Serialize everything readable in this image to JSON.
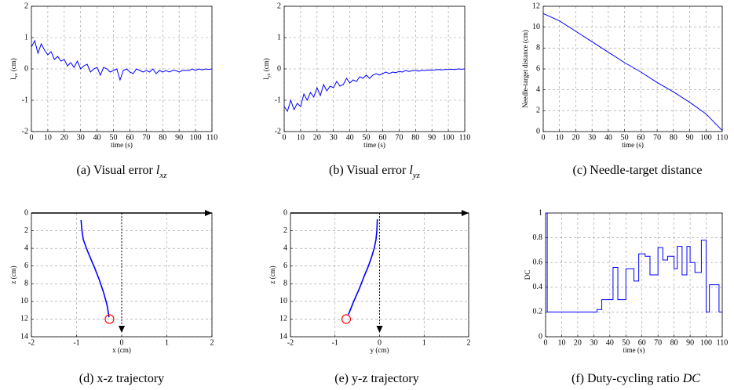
{
  "chart_data": [
    {
      "type": "line",
      "xlabel": "time (s)",
      "ylabel": {
        "base": "l",
        "sub": "xz",
        "unit": " (cm)"
      },
      "caption": "(a) Visual error ",
      "caption_math": "l",
      "caption_sub": "xz",
      "xlim": [
        0,
        110
      ],
      "ylim": [
        -2,
        2
      ],
      "xticks": [
        0,
        10,
        20,
        30,
        40,
        50,
        60,
        70,
        80,
        90,
        100,
        110
      ],
      "yticks": [
        -2,
        -1,
        0,
        1,
        2
      ],
      "grid": true,
      "color": "#0000ff",
      "x": [
        0,
        2,
        4,
        6,
        8,
        10,
        12,
        14,
        16,
        18,
        20,
        22,
        24,
        26,
        28,
        30,
        32,
        34,
        36,
        38,
        40,
        42,
        44,
        46,
        48,
        50,
        52,
        54,
        56,
        58,
        60,
        62,
        64,
        66,
        68,
        70,
        72,
        74,
        76,
        78,
        80,
        82,
        84,
        86,
        88,
        90,
        92,
        94,
        96,
        98,
        100,
        102,
        104,
        106,
        108,
        110
      ],
      "values": [
        0.7,
        0.9,
        0.5,
        0.8,
        0.6,
        0.45,
        0.55,
        0.3,
        0.4,
        0.25,
        0.3,
        0.1,
        0.2,
        0.05,
        0.25,
        0.0,
        0.1,
        0.15,
        -0.1,
        0.0,
        0.05,
        -0.2,
        0.05,
        0.0,
        -0.1,
        -0.05,
        0.0,
        -0.35,
        -0.05,
        0.0,
        -0.1,
        -0.15,
        0.0,
        -0.05,
        -0.1,
        -0.05,
        -0.1,
        0.0,
        -0.15,
        -0.05,
        -0.1,
        -0.05,
        -0.1,
        -0.05,
        -0.05,
        -0.1,
        -0.05,
        -0.05,
        -0.05,
        0.0,
        -0.05,
        0.0,
        -0.03,
        0.0,
        -0.02,
        0.0
      ]
    },
    {
      "type": "line",
      "xlabel": "time (s)",
      "ylabel": {
        "base": "l",
        "sub": "yz",
        "unit": " (cm)"
      },
      "caption": "(b) Visual error ",
      "caption_math": "l",
      "caption_sub": "yz",
      "xlim": [
        0,
        110
      ],
      "ylim": [
        -2,
        2
      ],
      "xticks": [
        0,
        10,
        20,
        30,
        40,
        50,
        60,
        70,
        80,
        90,
        100,
        110
      ],
      "yticks": [
        -2,
        -1,
        0,
        1,
        2
      ],
      "grid": true,
      "color": "#0000ff",
      "x": [
        0,
        2,
        4,
        6,
        8,
        10,
        12,
        14,
        16,
        18,
        20,
        22,
        24,
        26,
        28,
        30,
        32,
        34,
        36,
        38,
        40,
        42,
        44,
        46,
        48,
        50,
        52,
        54,
        56,
        58,
        60,
        62,
        64,
        66,
        68,
        70,
        72,
        74,
        76,
        78,
        80,
        82,
        84,
        86,
        88,
        90,
        92,
        94,
        96,
        98,
        100,
        102,
        104,
        106,
        108,
        110
      ],
      "values": [
        -1.2,
        -1.35,
        -1.0,
        -1.3,
        -1.1,
        -1.2,
        -0.8,
        -1.0,
        -0.75,
        -0.9,
        -0.6,
        -0.85,
        -0.5,
        -0.7,
        -0.55,
        -0.6,
        -0.4,
        -0.55,
        -0.5,
        -0.3,
        -0.45,
        -0.35,
        -0.4,
        -0.25,
        -0.3,
        -0.2,
        -0.3,
        -0.2,
        -0.15,
        -0.2,
        -0.15,
        -0.1,
        -0.15,
        -0.1,
        -0.12,
        -0.08,
        -0.1,
        -0.05,
        -0.08,
        -0.06,
        -0.05,
        -0.07,
        -0.04,
        -0.05,
        -0.03,
        -0.04,
        -0.03,
        -0.02,
        -0.03,
        -0.02,
        -0.02,
        -0.01,
        -0.02,
        0.0,
        -0.01,
        0.0
      ]
    },
    {
      "type": "line",
      "xlabel": "time (s)",
      "ylabel": "Needle-target distance (cm)",
      "caption": "(c) Needle-target distance",
      "xlim": [
        0,
        110
      ],
      "ylim": [
        0,
        12
      ],
      "xticks": [
        0,
        10,
        20,
        30,
        40,
        50,
        60,
        70,
        80,
        90,
        100,
        110
      ],
      "yticks": [
        0,
        2,
        4,
        6,
        8,
        10,
        12
      ],
      "grid": true,
      "color": "#0000ff",
      "x": [
        0,
        10,
        20,
        30,
        40,
        50,
        60,
        70,
        80,
        90,
        100,
        110
      ],
      "values": [
        11.3,
        10.6,
        9.6,
        8.6,
        7.6,
        6.6,
        5.7,
        4.7,
        3.8,
        2.8,
        1.7,
        0.1
      ]
    },
    {
      "type": "trajectory",
      "xlabel": "x (cm)",
      "ylabel": "z (cm)",
      "caption": "(d) x-z trajectory",
      "xlim": [
        -2,
        2
      ],
      "ylim": [
        14,
        0
      ],
      "xticks": [
        -2,
        -1,
        0,
        1,
        2
      ],
      "yticks": [
        0,
        2,
        4,
        6,
        8,
        10,
        12,
        14
      ],
      "grid": true,
      "color": "#0000ff",
      "x": [
        -0.9,
        -0.88,
        -0.85,
        -0.78,
        -0.7,
        -0.6,
        -0.5,
        -0.4,
        -0.32,
        -0.28
      ],
      "values": [
        0.8,
        2,
        3,
        4,
        5,
        6.2,
        7.5,
        9,
        10.5,
        11.8
      ],
      "target": {
        "x": -0.27,
        "y": 12,
        "color": "#ff0000"
      }
    },
    {
      "type": "trajectory",
      "xlabel": "y (cm)",
      "ylabel": "z (cm)",
      "caption": "(e) y-z trajectory",
      "xlim": [
        -2,
        2
      ],
      "ylim": [
        14,
        0
      ],
      "xticks": [
        -2,
        -1,
        0,
        1,
        2
      ],
      "yticks": [
        0,
        2,
        4,
        6,
        8,
        10,
        12,
        14
      ],
      "grid": true,
      "color": "#0000ff",
      "x": [
        -0.05,
        -0.06,
        -0.08,
        -0.12,
        -0.18,
        -0.25,
        -0.35,
        -0.45,
        -0.58,
        -0.7
      ],
      "values": [
        0.7,
        2,
        3,
        4,
        5,
        6,
        7.2,
        8.5,
        10,
        11.5
      ],
      "target": {
        "x": -0.75,
        "y": 12,
        "color": "#ff0000"
      }
    },
    {
      "type": "step",
      "xlabel": "time (s)",
      "ylabel": "DC",
      "caption": "(f) Duty-cycling ratio ",
      "caption_math": "DC",
      "xlim": [
        0,
        110
      ],
      "ylim": [
        0,
        1
      ],
      "xticks": [
        0,
        10,
        20,
        30,
        40,
        50,
        60,
        70,
        80,
        90,
        100,
        110
      ],
      "yticks": [
        0,
        0.2,
        0.4,
        0.6,
        0.8,
        1
      ],
      "grid": true,
      "color": "#0000ff",
      "x": [
        0,
        1,
        32,
        35,
        42,
        45,
        50,
        55,
        58,
        62,
        65,
        70,
        73,
        76,
        80,
        82,
        85,
        88,
        90,
        93,
        97,
        100,
        102,
        108,
        110
      ],
      "values": [
        1.0,
        0.2,
        0.22,
        0.3,
        0.56,
        0.3,
        0.55,
        0.45,
        0.67,
        0.65,
        0.5,
        0.72,
        0.62,
        0.65,
        0.55,
        0.73,
        0.5,
        0.73,
        0.6,
        0.52,
        0.78,
        0.2,
        0.42,
        0.2,
        0.2
      ]
    }
  ]
}
